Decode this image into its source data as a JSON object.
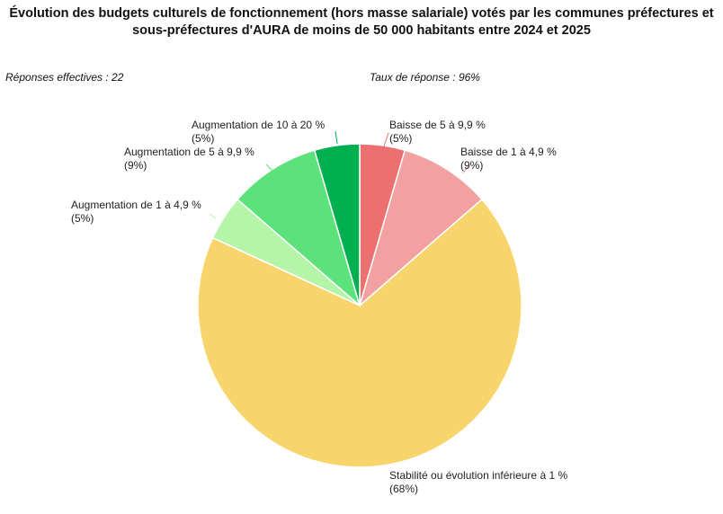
{
  "title_lines": [
    "Évolution des budgets culturels de fonctionnement (hors masse salariale) votés par les communes préfectures et",
    "sous-préfectures d'AURA de moins de 50 000 habitants entre 2024 et 2025"
  ],
  "responses_label": "Réponses effectives : 22",
  "rate_label": "Taux de réponse : 96%",
  "chart_data": {
    "type": "pie",
    "start": "12 o'clock",
    "direction": "clockwise",
    "slices": [
      {
        "label": "Baisse de 5 à 9,9 %",
        "pct_label": "(5%)",
        "value": 4.5,
        "color": "#ec7070"
      },
      {
        "label": "Baisse de 1 à 4,9 %",
        "pct_label": "(9%)",
        "value": 9.1,
        "color": "#f2a0a0"
      },
      {
        "label": "Stabilité ou évolution inférieure à 1 %",
        "pct_label": "(68%)",
        "value": 68.2,
        "color": "#f8d56c"
      },
      {
        "label": "Augmentation de 1 à 4,9 %",
        "pct_label": "(5%)",
        "value": 4.5,
        "color": "#b4f5a8"
      },
      {
        "label": "Augmentation de 5 à 9,9 %",
        "pct_label": "(9%)",
        "value": 9.1,
        "color": "#5ce27a"
      },
      {
        "label": "Augmentation de 10 à 20 %",
        "pct_label": "(5%)",
        "value": 4.5,
        "color": "#00b050"
      }
    ]
  }
}
